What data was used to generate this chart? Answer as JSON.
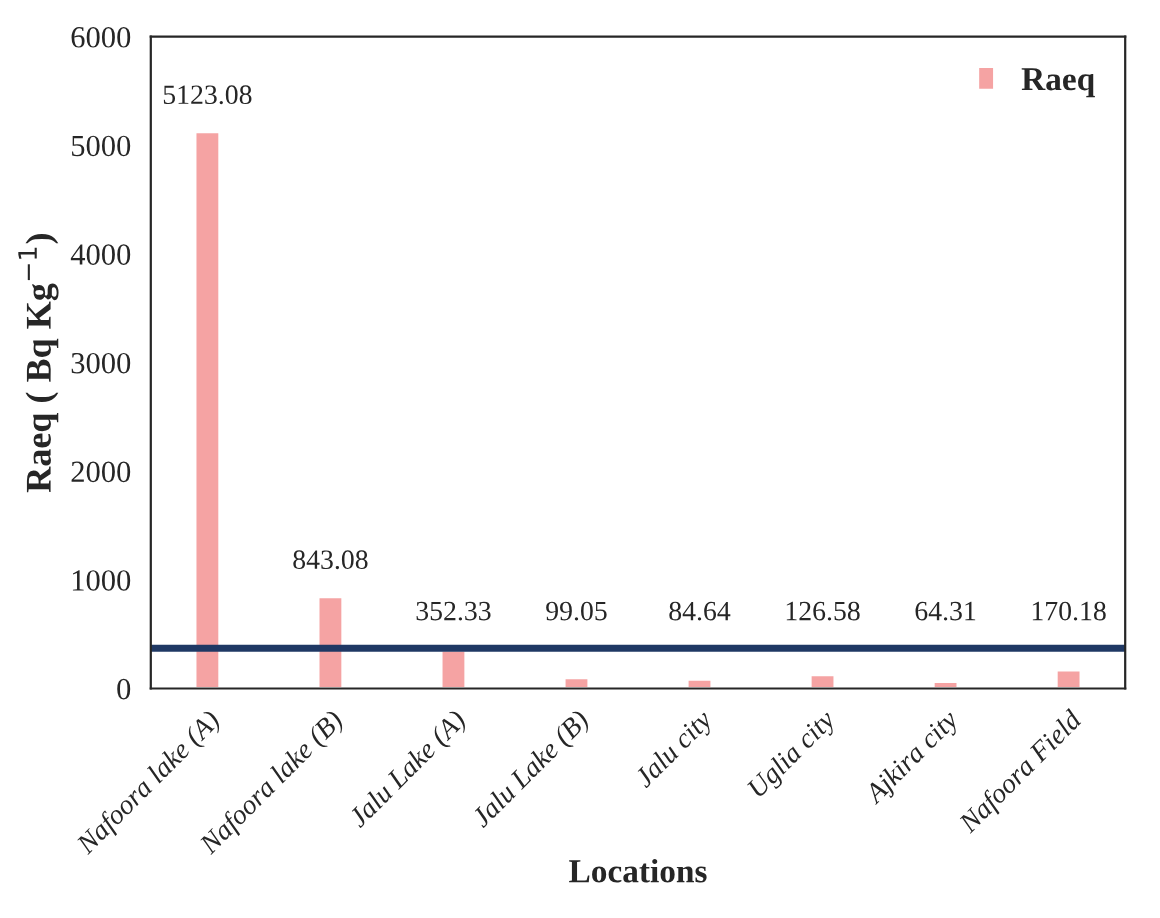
{
  "chart_data": {
    "type": "bar",
    "xlabel": "Locations",
    "ylabel": "Raeq ( Bq Kg$^{−1}$)",
    "categories": [
      "Nafoora lake (A)",
      "Nafoora lake (B)",
      "Jalu Lake (A)",
      "Jalu Lake (B)",
      "Jalu city",
      "Uglia city",
      "Ajkira city",
      "Nafoora Field"
    ],
    "series": [
      {
        "name": "Raeq",
        "color": "#f5a3a3",
        "values": [
          5123.08,
          843.08,
          352.33,
          99.05,
          84.64,
          126.58,
          64.31,
          170.18
        ]
      }
    ],
    "data_labels": true,
    "ylim": [
      0,
      6000
    ],
    "yticks": [
      0,
      1000,
      2000,
      3000,
      4000,
      5000,
      6000
    ],
    "grid": false,
    "legend": "top right",
    "ref_lines": [
      {
        "axis": "y",
        "value": 370,
        "color": "#1f3864",
        "line_style": "solid"
      }
    ]
  }
}
